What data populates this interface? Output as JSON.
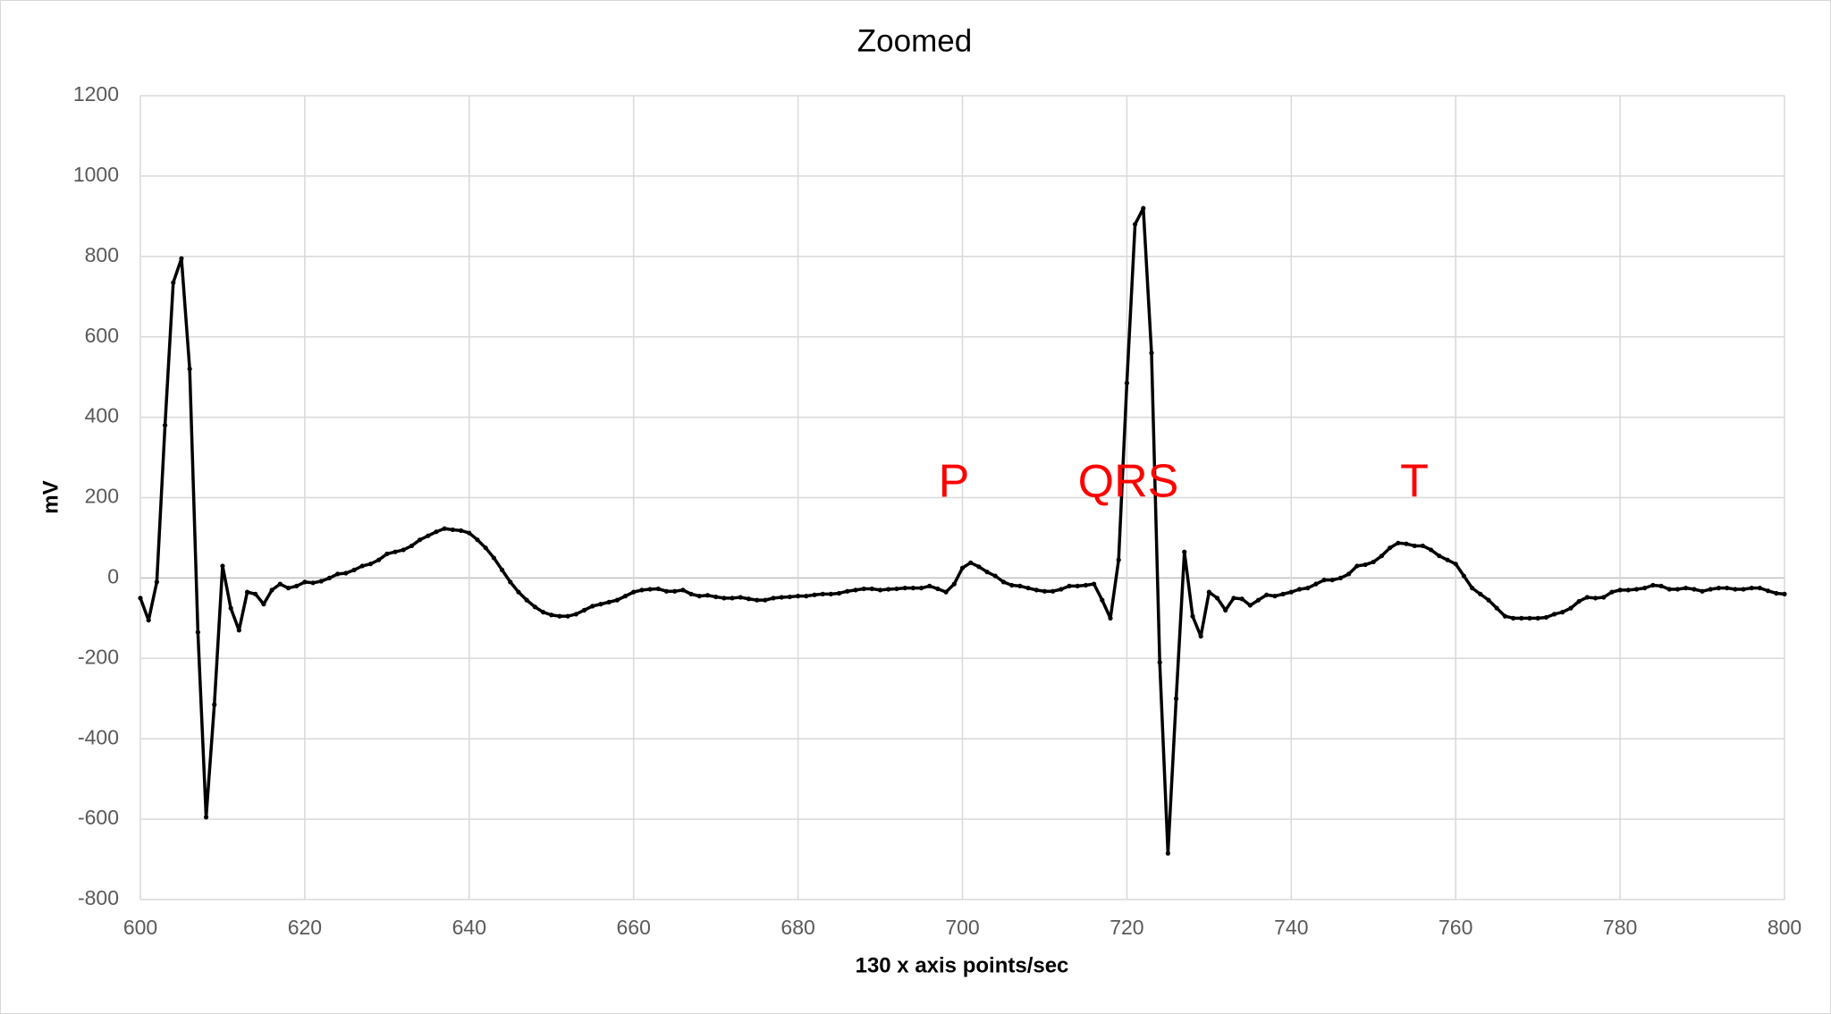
{
  "chart_data": {
    "type": "line",
    "title": "Zoomed",
    "x_label": "130 x axis points/sec",
    "y_label": "mV",
    "xlim": [
      600,
      800
    ],
    "xticks": [
      600,
      620,
      640,
      660,
      680,
      700,
      720,
      740,
      760,
      780,
      800
    ],
    "ylim": [
      -800,
      1200
    ],
    "yticks": [
      -800,
      -600,
      -400,
      -200,
      0,
      200,
      400,
      600,
      800,
      1000,
      1200
    ],
    "grid": true,
    "annotations": [
      "P",
      "QRS",
      "T"
    ],
    "x": [
      600,
      601,
      602,
      603,
      604,
      605,
      606,
      607,
      608,
      609,
      610,
      611,
      612,
      613,
      614,
      615,
      616,
      617,
      618,
      619,
      620,
      621,
      622,
      623,
      624,
      625,
      626,
      627,
      628,
      629,
      630,
      631,
      632,
      633,
      634,
      635,
      636,
      637,
      638,
      639,
      640,
      641,
      642,
      643,
      644,
      645,
      646,
      647,
      648,
      649,
      650,
      651,
      652,
      653,
      654,
      655,
      656,
      657,
      658,
      659,
      660,
      661,
      662,
      663,
      664,
      665,
      666,
      667,
      668,
      669,
      670,
      671,
      672,
      673,
      674,
      675,
      676,
      677,
      678,
      679,
      680,
      681,
      682,
      683,
      684,
      685,
      686,
      687,
      688,
      689,
      690,
      691,
      692,
      693,
      694,
      695,
      696,
      697,
      698,
      699,
      700,
      701,
      702,
      703,
      704,
      705,
      706,
      707,
      708,
      709,
      710,
      711,
      712,
      713,
      714,
      715,
      716,
      717,
      718,
      719,
      720,
      721,
      722,
      723,
      724,
      725,
      726,
      727,
      728,
      729,
      730,
      731,
      732,
      733,
      734,
      735,
      736,
      737,
      738,
      739,
      740,
      741,
      742,
      743,
      744,
      745,
      746,
      747,
      748,
      749,
      750,
      751,
      752,
      753,
      754,
      755,
      756,
      757,
      758,
      759,
      760,
      761,
      762,
      763,
      764,
      765,
      766,
      767,
      768,
      769,
      770,
      771,
      772,
      773,
      774,
      775,
      776,
      777,
      778,
      779,
      780,
      781,
      782,
      783,
      784,
      785,
      786,
      787,
      788,
      789,
      790,
      791,
      792,
      793,
      794,
      795,
      796,
      797,
      798,
      799,
      800
    ],
    "series": [
      {
        "color": "#000000",
        "values": [
          -50,
          -105,
          -10,
          380,
          735,
          795,
          520,
          -135,
          -595,
          -315,
          30,
          -75,
          -130,
          -35,
          -40,
          -65,
          -30,
          -15,
          -25,
          -20,
          -10,
          -12,
          -8,
          0,
          10,
          12,
          20,
          30,
          35,
          45,
          60,
          65,
          70,
          80,
          95,
          105,
          115,
          123,
          120,
          118,
          112,
          95,
          75,
          50,
          20,
          -10,
          -35,
          -55,
          -72,
          -85,
          -92,
          -95,
          -95,
          -90,
          -80,
          -70,
          -65,
          -60,
          -55,
          -45,
          -35,
          -30,
          -28,
          -27,
          -33,
          -33,
          -30,
          -40,
          -45,
          -43,
          -47,
          -50,
          -50,
          -48,
          -52,
          -55,
          -55,
          -50,
          -48,
          -47,
          -45,
          -45,
          -42,
          -40,
          -40,
          -38,
          -33,
          -30,
          -27,
          -27,
          -30,
          -28,
          -27,
          -25,
          -25,
          -25,
          -20,
          -27,
          -35,
          -15,
          25,
          38,
          28,
          15,
          5,
          -10,
          -18,
          -20,
          -25,
          -30,
          -33,
          -33,
          -28,
          -20,
          -20,
          -18,
          -15,
          -55,
          -100,
          45,
          485,
          880,
          920,
          560,
          -210,
          -685,
          -300,
          65,
          -95,
          -145,
          -35,
          -50,
          -80,
          -50,
          -52,
          -68,
          -55,
          -42,
          -45,
          -40,
          -35,
          -28,
          -25,
          -15,
          -5,
          -5,
          0,
          10,
          30,
          33,
          40,
          55,
          75,
          87,
          85,
          80,
          80,
          70,
          55,
          45,
          35,
          5,
          -25,
          -40,
          -55,
          -75,
          -95,
          -100,
          -100,
          -100,
          -100,
          -98,
          -90,
          -85,
          -75,
          -58,
          -48,
          -50,
          -48,
          -35,
          -30,
          -30,
          -28,
          -25,
          -18,
          -20,
          -28,
          -28,
          -25,
          -28,
          -33,
          -28,
          -25,
          -25,
          -28,
          -28,
          -25,
          -25,
          -32,
          -38,
          -40
        ]
      }
    ]
  }
}
